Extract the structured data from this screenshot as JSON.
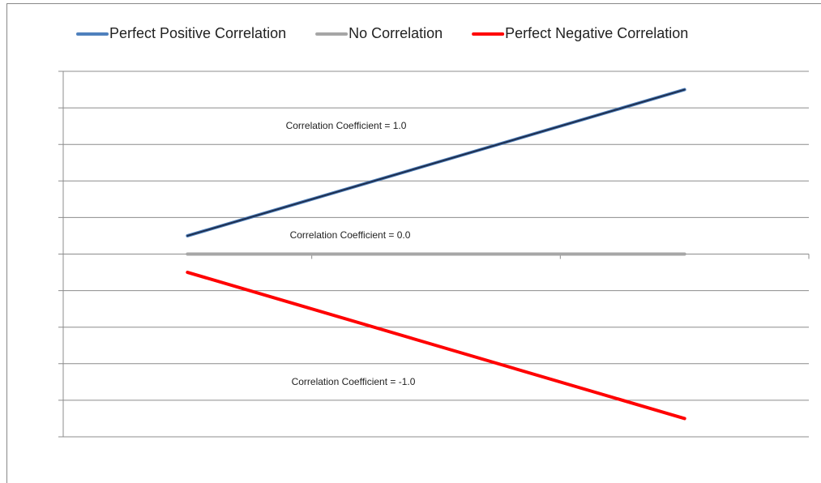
{
  "chart_data": {
    "type": "line",
    "categories": [
      null,
      null,
      null
    ],
    "series": [
      {
        "name": "Perfect Positive Correlation",
        "color": "#4f81bd",
        "values": [
          0.5,
          2.5,
          4.5
        ]
      },
      {
        "name": "No Correlation",
        "color": "#a6a6a6",
        "values": [
          0,
          0,
          0
        ]
      },
      {
        "name": "Perfect Negative Correlation",
        "color": "#ff0000",
        "values": [
          -0.5,
          -2.5,
          -4.5
        ]
      }
    ],
    "annotations": [
      "Correlation Coefficient = 1.0",
      "Correlation Coefficient = 0.0",
      "Correlation Coefficient = -1.0"
    ],
    "ylim": [
      -5,
      5
    ],
    "yticks": [
      -5,
      -4,
      -3,
      -2,
      -1,
      0,
      1,
      2,
      3,
      4,
      5
    ],
    "grid": true,
    "legend": "top"
  }
}
